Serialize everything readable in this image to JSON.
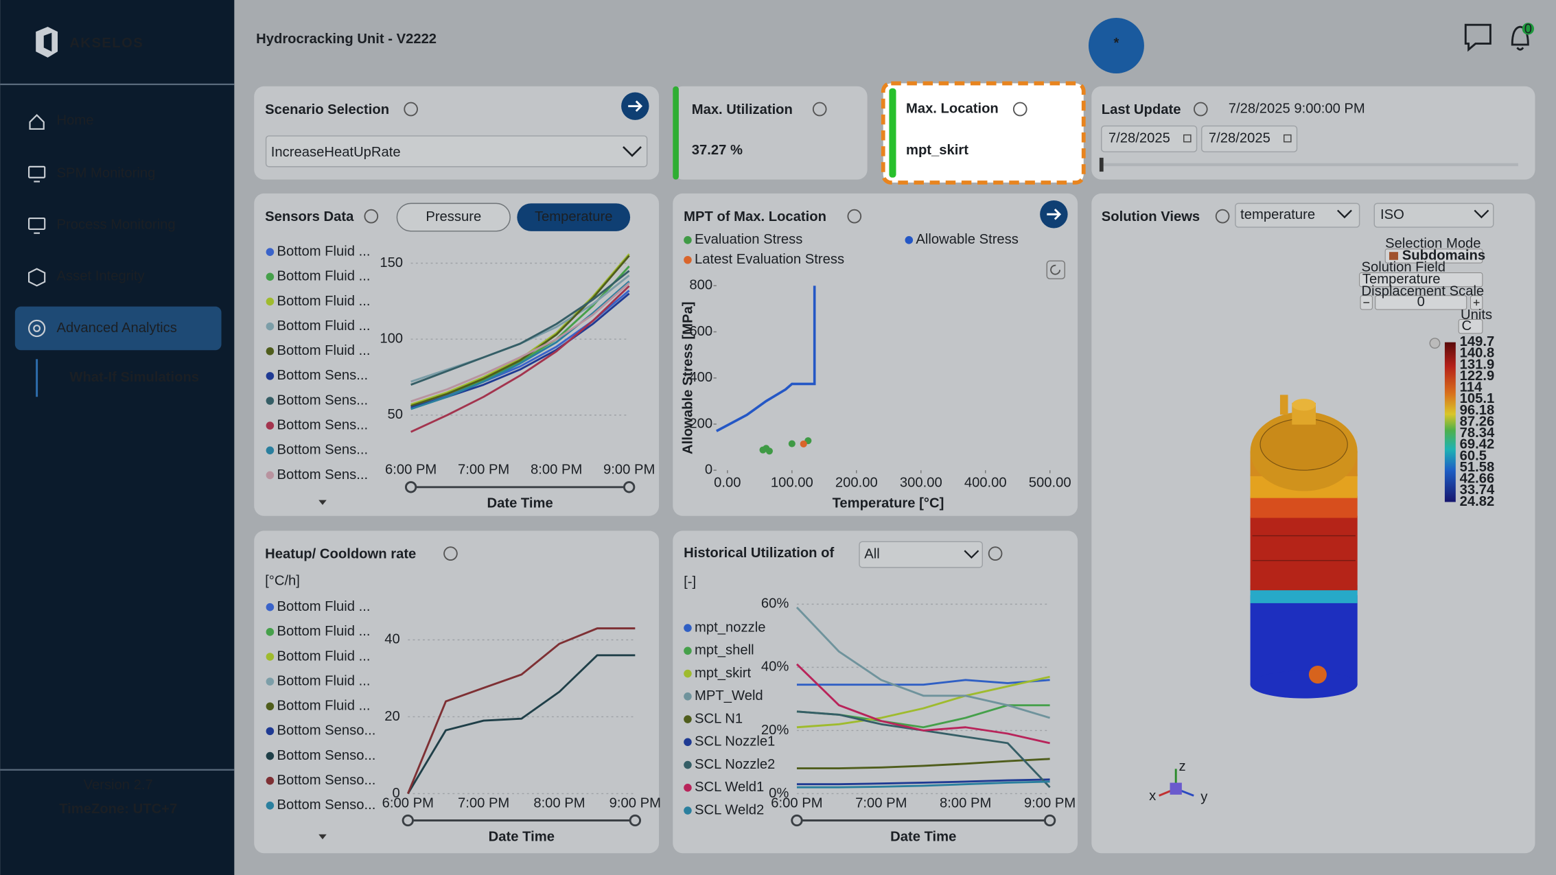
{
  "sidebar": {
    "brand": "AKSELOS",
    "nav": [
      "Home",
      "SPM Monitoring",
      "Process Monitoring",
      "Asset Integrity",
      "Advanced Analytics"
    ],
    "subnav": "What-If Simulations",
    "version": "Version 2.7",
    "timezone": "TimeZone: UTC+7"
  },
  "header": {
    "title": "Hydrocracking Unit - V2222",
    "fab": "*",
    "notifications": 0
  },
  "scenario": {
    "title": "Scenario Selection",
    "selected": "IncreaseHeatUpRate"
  },
  "max_utilization": {
    "title": "Max. Utilization",
    "value": "37.27 %"
  },
  "max_location": {
    "title": "Max. Location",
    "value": "mpt_skirt"
  },
  "last_update": {
    "title": "Last Update",
    "value": "7/28/2025 9:00:00 PM",
    "start": "7/28/2025",
    "end": "7/28/2025"
  },
  "solution_views": {
    "title": "Solution Views",
    "field": "temperature",
    "view": "ISO",
    "selection_mode_label": "Selection Mode",
    "selection_mode": "Subdomains",
    "solution_field_label": "Solution Field",
    "solution_field": "Temperature",
    "displacement_label": "Displacement Scale",
    "displacement": 0,
    "units_label": "Units",
    "units": "C",
    "colorbar": [
      149.7,
      140.8,
      131.9,
      122.9,
      114,
      105.1,
      96.18,
      87.26,
      78.34,
      69.42,
      60.5,
      51.58,
      42.66,
      33.74,
      24.82
    ],
    "axes": [
      "x",
      "y",
      "z"
    ]
  },
  "chart_data": [
    {
      "type": "line",
      "title": "Sensors Data",
      "tabs": [
        "Pressure",
        "Temperature"
      ],
      "xlabel": "Date Time",
      "categories": [
        "6:00 PM",
        null,
        "7:00 PM",
        null,
        "8:00 PM",
        null,
        "9:00 PM"
      ],
      "ylim": [
        15,
        160
      ],
      "yticks": [
        50,
        100,
        150
      ],
      "grid": true,
      "series": [
        {
          "name": "Bottom Fluid ...",
          "color": "#3a63c9",
          "values": [
            55,
            63,
            72,
            82,
            95,
            112,
            132
          ]
        },
        {
          "name": "Bottom Fluid ...",
          "color": "#45a04a",
          "values": [
            56,
            64,
            73,
            85,
            100,
            122,
            148
          ]
        },
        {
          "name": "Bottom Fluid ...",
          "color": "#9fbb2e",
          "values": [
            57,
            65,
            75,
            87,
            104,
            128,
            156
          ]
        },
        {
          "name": "Bottom Fluid ...",
          "color": "#7c9ea8",
          "values": [
            72,
            80,
            88,
            97,
            108,
            123,
            142
          ]
        },
        {
          "name": "Bottom Fluid ...",
          "color": "#4f5d1c",
          "values": [
            56,
            64,
            74,
            86,
            103,
            127,
            155
          ]
        },
        {
          "name": "Bottom Sens...",
          "color": "#1f3a93",
          "values": [
            55,
            62,
            70,
            80,
            93,
            110,
            130
          ]
        },
        {
          "name": "Bottom Sens...",
          "color": "#355e66",
          "values": [
            70,
            79,
            88,
            97,
            110,
            126,
            145
          ]
        },
        {
          "name": "Bottom Sens...",
          "color": "#a3344e",
          "values": [
            39,
            50,
            62,
            76,
            92,
            112,
            135
          ]
        },
        {
          "name": "Bottom Sens...",
          "color": "#2a7f9e",
          "values": [
            54,
            62,
            72,
            84,
            98,
            117,
            138
          ]
        },
        {
          "name": "Bottom Sens...",
          "color": "#b8939f",
          "values": [
            59,
            67,
            77,
            88,
            100,
            116,
            137
          ]
        }
      ]
    },
    {
      "type": "scatter",
      "title": "MPT of Max. Location",
      "xlabel": "Temperature [°C]",
      "ylabel": "Allowable Stress [MPa]",
      "xlim": [
        -17,
        526
      ],
      "ylim": [
        0,
        800
      ],
      "xticks": [
        {
          "value": 0,
          "label": "0.00"
        },
        {
          "value": 100,
          "label": "100.00"
        },
        {
          "value": 200,
          "label": "200.00"
        },
        {
          "value": 300,
          "label": "300.00"
        },
        {
          "value": 400,
          "label": "400.00"
        },
        {
          "value": 500,
          "label": "500.00"
        }
      ],
      "yticks": [
        0,
        200,
        400,
        600,
        800
      ],
      "series": [
        {
          "name": "Evaluation Stress",
          "color": "#3f9a45",
          "x": [
            55,
            60,
            65,
            100,
            125
          ],
          "values": [
            88,
            95,
            83,
            115,
            128
          ]
        },
        {
          "name": "Allowable Stress",
          "color": "#2457c5",
          "line": true,
          "x": [
            -17,
            30,
            60,
            90,
            100,
            135,
            135
          ],
          "values": [
            170,
            240,
            300,
            350,
            374,
            374,
            800
          ]
        },
        {
          "name": "Latest Evaluation Stress",
          "color": "#d9652b",
          "x": [
            118
          ],
          "values": [
            114
          ]
        }
      ]
    },
    {
      "type": "line",
      "title": "Heatup/ Cooldown rate",
      "unit": "[°C/h]",
      "xlabel": "Date Time",
      "categories": [
        "6:00 PM",
        null,
        "7:00 PM",
        null,
        "8:00 PM",
        null,
        "9:00 PM"
      ],
      "ylim": [
        0,
        45
      ],
      "yticks": [
        0,
        20,
        40
      ],
      "grid": true,
      "series": [
        {
          "name": "Bottom Fluid ...",
          "color": "#3a63c9",
          "values": [
            null,
            null,
            null,
            null,
            null,
            null,
            null
          ]
        },
        {
          "name": "Bottom Fluid ...",
          "color": "#45a04a",
          "values": [
            null,
            null,
            null,
            null,
            null,
            null,
            null
          ]
        },
        {
          "name": "Bottom Fluid ...",
          "color": "#9fbb2e",
          "values": [
            null,
            null,
            null,
            null,
            null,
            null,
            null
          ]
        },
        {
          "name": "Bottom Fluid ...",
          "color": "#7c9ea8",
          "values": [
            null,
            null,
            null,
            null,
            null,
            null,
            null
          ]
        },
        {
          "name": "Bottom Fluid ...",
          "color": "#4f5d1c",
          "values": [
            null,
            null,
            null,
            null,
            null,
            null,
            null
          ]
        },
        {
          "name": "Bottom Senso...",
          "color": "#1f3a93",
          "values": [
            null,
            null,
            null,
            null,
            null,
            null,
            null
          ]
        },
        {
          "name": "Bottom Senso...",
          "color": "#1f3f48",
          "values": [
            0,
            16.5,
            19,
            19.5,
            26.5,
            36,
            36
          ]
        },
        {
          "name": "Bottom Senso...",
          "color": "#7e3034",
          "values": [
            0,
            24,
            27.5,
            31,
            39,
            43,
            43
          ]
        },
        {
          "name": "Bottom Senso...",
          "color": "#2a7f9e",
          "values": [
            null,
            null,
            null,
            null,
            null,
            null,
            null
          ]
        }
      ]
    },
    {
      "type": "line",
      "title": "Historical Utilization of",
      "filter": "All",
      "unit": "[-]",
      "xlabel": "Date Time",
      "categories": [
        "6:00 PM",
        null,
        "7:00 PM",
        null,
        "8:00 PM",
        null,
        "9:00 PM"
      ],
      "ylim": [
        0,
        60
      ],
      "yticks": [
        {
          "value": 0,
          "label": "0%"
        },
        {
          "value": 20,
          "label": "20%"
        },
        {
          "value": 40,
          "label": "40%"
        },
        {
          "value": 60,
          "label": "60%"
        }
      ],
      "grid": true,
      "series": [
        {
          "name": "mpt_nozzle",
          "color": "#2f5fc4",
          "values": [
            34.5,
            34.5,
            34.5,
            34.5,
            36,
            35,
            36
          ]
        },
        {
          "name": "mpt_shell",
          "color": "#45a04a",
          "values": [
            26,
            25,
            23,
            21,
            24,
            28,
            28
          ]
        },
        {
          "name": "mpt_skirt",
          "color": "#9fbb2e",
          "values": [
            21,
            22,
            24,
            27,
            31,
            34,
            37
          ]
        },
        {
          "name": "MPT_Weld",
          "color": "#6f939c",
          "values": [
            59,
            45,
            36,
            31,
            31,
            28,
            24
          ]
        },
        {
          "name": "SCL N1",
          "color": "#4f5d1c",
          "values": [
            8,
            8,
            8.3,
            8.8,
            9.5,
            10.3,
            11
          ]
        },
        {
          "name": "SCL Nozzle1",
          "color": "#1f3a93",
          "values": [
            3,
            3,
            3.2,
            3.5,
            3.8,
            4.2,
            4.5
          ]
        },
        {
          "name": "SCL Nozzle2",
          "color": "#355e66",
          "values": [
            26,
            25,
            22,
            20,
            18,
            16,
            2
          ]
        },
        {
          "name": "SCL Weld1",
          "color": "#b8245a",
          "values": [
            41,
            28,
            23,
            20,
            21,
            19,
            16
          ]
        },
        {
          "name": "SCL Weld2",
          "color": "#2a7f9e",
          "values": [
            2,
            2,
            2.2,
            2.5,
            3,
            3.5,
            3.8
          ]
        }
      ]
    }
  ]
}
